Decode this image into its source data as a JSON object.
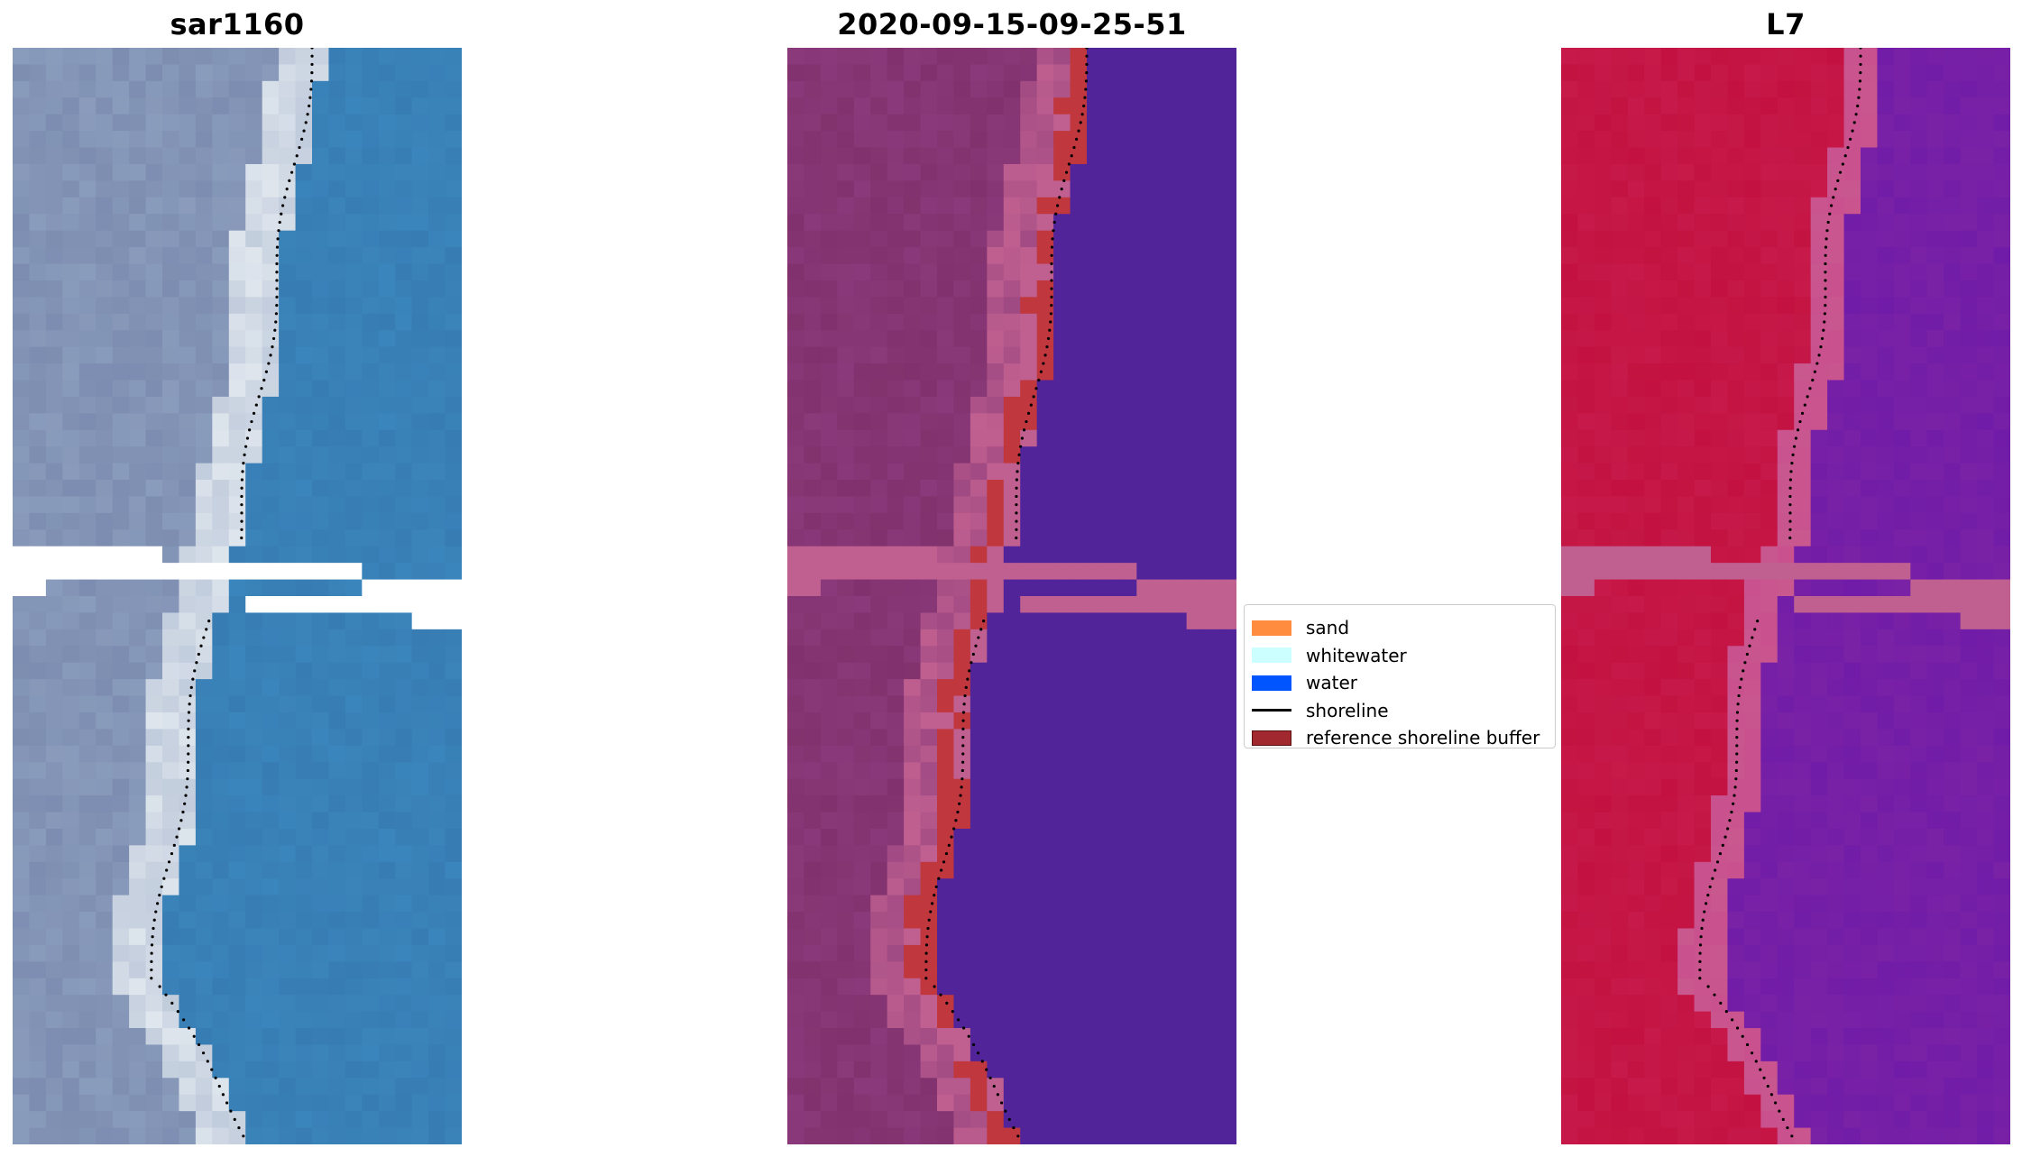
{
  "panels": [
    {
      "title": "sar1160",
      "icon": "satellite-rgb-image"
    },
    {
      "title": "2020-09-15-09-25-51",
      "icon": "classified-image"
    },
    {
      "title": "L7",
      "icon": "false-color-image"
    }
  ],
  "legend": {
    "items": [
      {
        "label": "sand",
        "color": "#ff8c3f",
        "kind": "patch"
      },
      {
        "label": "whitewater",
        "color": "#ccffff",
        "kind": "patch"
      },
      {
        "label": "water",
        "color": "#0055ff",
        "kind": "patch"
      },
      {
        "label": "shoreline",
        "color": "#000000",
        "kind": "line"
      },
      {
        "label": "reference shoreline buffer",
        "color": "#a0282e",
        "kind": "patch"
      }
    ]
  },
  "colors": {
    "rgb_water": "#3a85bb",
    "rgb_land": "#8a9cbc",
    "rgb_beach": "#eef3f6",
    "cls_water": "#52249a",
    "cls_land": "#8a3a7a",
    "cls_buffer": "#c0373d",
    "cls_pink": "#c06090",
    "l7_land": "#c71a4a",
    "l7_water": "#7a22a6",
    "l7_beach": "#c9588f",
    "nodata_band_pink": "#c06090"
  }
}
